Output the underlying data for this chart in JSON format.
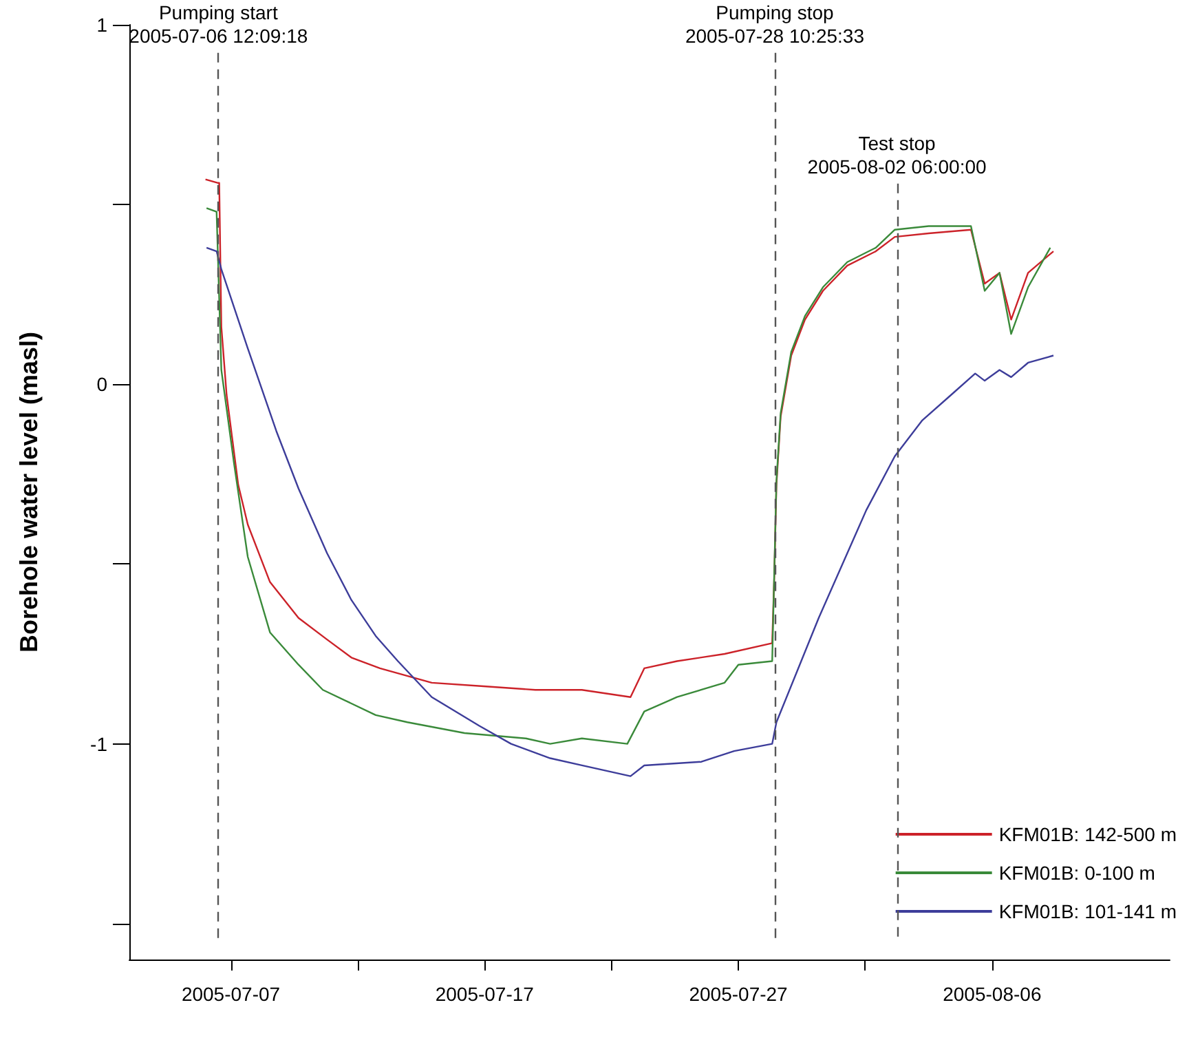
{
  "chart_data": {
    "type": "line",
    "ylabel": "Borehole water level (masl)",
    "xlim": [
      "2005-07-03",
      "2005-08-13"
    ],
    "xticks": [
      {
        "value": "2005-07-07",
        "label": "2005-07-07"
      },
      {
        "value": "2005-07-12",
        "label": null
      },
      {
        "value": "2005-07-17",
        "label": "2005-07-17"
      },
      {
        "value": "2005-07-22",
        "label": null
      },
      {
        "value": "2005-07-27",
        "label": "2005-07-27"
      },
      {
        "value": "2005-08-01",
        "label": null
      },
      {
        "value": "2005-08-06",
        "label": "2005-08-06"
      }
    ],
    "ylim": [
      -1.6,
      1
    ],
    "yticks": [
      -1,
      {
        "value": -1.5,
        "label": null
      },
      {
        "value": -0.5,
        "label": null
      },
      0,
      {
        "value": 0.5,
        "label": null
      },
      1
    ],
    "grid": false,
    "legend": "bottom right",
    "series": [
      {
        "name": "KFM01B: 142-500 m",
        "color": "#cc2229",
        "x": [
          "2005-07-06T00:00",
          "2005-07-06T12:00",
          "2005-07-06T13:00",
          "2005-07-06T15:00",
          "2005-07-06T20:00",
          "2005-07-07T07:00",
          "2005-07-07T16:00",
          "2005-07-08T13:00",
          "2005-07-09T16:00",
          "2005-07-10T19:00",
          "2005-07-11T18:00",
          "2005-07-12T21:00",
          "2005-07-14T22:00",
          "2005-07-16T23:00",
          "2005-07-19T00:00",
          "2005-07-20T20:00",
          "2005-07-22T18:00",
          "2005-07-23T07:00",
          "2005-07-24T14:00",
          "2005-07-26T11:00",
          "2005-07-28T08:00",
          "2005-07-28T10:00",
          "2005-07-28T12:00",
          "2005-07-28T16:00",
          "2005-07-29T02:00",
          "2005-07-29T15:00",
          "2005-07-30T08:00",
          "2005-07-31T07:00",
          "2005-08-01T10:00",
          "2005-08-02T04:00",
          "2005-08-03T12:00",
          "2005-08-05T04:00",
          "2005-08-05T17:00",
          "2005-08-06T07:00",
          "2005-08-06T18:00",
          "2005-08-07T10:00",
          "2005-08-08T10:00"
        ],
        "values": [
          0.57,
          0.56,
          0.56,
          0.16,
          -0.03,
          -0.28,
          -0.39,
          -0.55,
          -0.65,
          -0.71,
          -0.76,
          -0.79,
          -0.83,
          -0.84,
          -0.85,
          -0.85,
          -0.87,
          -0.79,
          -0.77,
          -0.75,
          -0.72,
          -0.53,
          -0.28,
          -0.09,
          0.08,
          0.18,
          0.26,
          0.33,
          0.37,
          0.41,
          0.42,
          0.43,
          0.28,
          0.31,
          0.18,
          0.31,
          0.37
        ]
      },
      {
        "name": "KFM01B: 0-100 m",
        "color": "#3a8a3a",
        "x": [
          "2005-07-06T01:00",
          "2005-07-06T10:30",
          "2005-07-06T15:00",
          "2005-07-07T03:00",
          "2005-07-07T16:00",
          "2005-07-08T13:00",
          "2005-07-09T16:00",
          "2005-07-10T15:00",
          "2005-07-12T17:00",
          "2005-07-13T23:00",
          "2005-07-16T05:00",
          "2005-07-18T15:00",
          "2005-07-19T14:00",
          "2005-07-20T20:00",
          "2005-07-22T15:00",
          "2005-07-23T07:00",
          "2005-07-24T14:00",
          "2005-07-26T11:00",
          "2005-07-27T00:00",
          "2005-07-28T08:00",
          "2005-07-28T12:00",
          "2005-07-28T16:00",
          "2005-07-29T02:00",
          "2005-07-29T15:00",
          "2005-07-30T08:00",
          "2005-07-31T07:00",
          "2005-08-01T10:00",
          "2005-08-02T04:00",
          "2005-08-03T12:00",
          "2005-08-05T04:00",
          "2005-08-05T17:00",
          "2005-08-06T07:00",
          "2005-08-06T18:00",
          "2005-08-07T10:00",
          "2005-08-08T07:00"
        ],
        "values": [
          0.49,
          0.48,
          0.04,
          -0.22,
          -0.48,
          -0.69,
          -0.78,
          -0.85,
          -0.92,
          -0.94,
          -0.97,
          -0.985,
          -1.0,
          -0.985,
          -1.0,
          -0.91,
          -0.87,
          -0.83,
          -0.78,
          -0.77,
          -0.27,
          -0.08,
          0.09,
          0.19,
          0.27,
          0.34,
          0.38,
          0.43,
          0.44,
          0.44,
          0.26,
          0.31,
          0.14,
          0.27,
          0.38
        ]
      },
      {
        "name": "KFM01B: 101-141 m",
        "color": "#3d3d9a",
        "x": [
          "2005-07-06T01:00",
          "2005-07-06T10:30",
          "2005-07-06T15:00",
          "2005-07-07T16:00",
          "2005-07-08T19:00",
          "2005-07-09T16:00",
          "2005-07-10T19:00",
          "2005-07-11T18:00",
          "2005-07-12T17:00",
          "2005-07-13T14:00",
          "2005-07-14T22:00",
          "2005-07-16T19:00",
          "2005-07-18T01:00",
          "2005-07-19T14:00",
          "2005-07-20T20:00",
          "2005-07-22T18:00",
          "2005-07-23T07:00",
          "2005-07-25T13:00",
          "2005-07-26T20:00",
          "2005-07-28T08:00",
          "2005-07-28T12:00",
          "2005-07-30T04:00",
          "2005-08-01T01:00",
          "2005-08-02T04:00",
          "2005-08-03T06:00",
          "2005-08-04T09:00",
          "2005-08-05T08:00",
          "2005-08-05T17:00",
          "2005-08-06T07:00",
          "2005-08-06T18:00",
          "2005-08-07T10:00",
          "2005-08-08T10:00"
        ],
        "values": [
          0.38,
          0.37,
          0.32,
          0.1,
          -0.13,
          -0.29,
          -0.47,
          -0.6,
          -0.7,
          -0.77,
          -0.87,
          -0.95,
          -1.0,
          -1.04,
          -1.06,
          -1.09,
          -1.06,
          -1.05,
          -1.02,
          -1.0,
          -0.94,
          -0.65,
          -0.35,
          -0.2,
          -0.1,
          -0.03,
          0.03,
          0.01,
          0.04,
          0.02,
          0.06,
          0.08
        ]
      }
    ],
    "ref_lines": [
      {
        "axis": "x",
        "value": "2005-07-06T12:09",
        "label": "Pumping start\n2005-07-06 12:09:18",
        "color": "#555555",
        "line_style": "dashed"
      },
      {
        "axis": "x",
        "value": "2005-07-28T10:25",
        "label": "Pumping stop\n2005-07-28 10:25:33",
        "color": "#555555",
        "line_style": "dashed"
      },
      {
        "axis": "x",
        "value": "2005-08-02T06:00",
        "label": "Test stop\n2005-08-02 06:00:00",
        "color": "#555555",
        "line_style": "dashed"
      }
    ]
  }
}
